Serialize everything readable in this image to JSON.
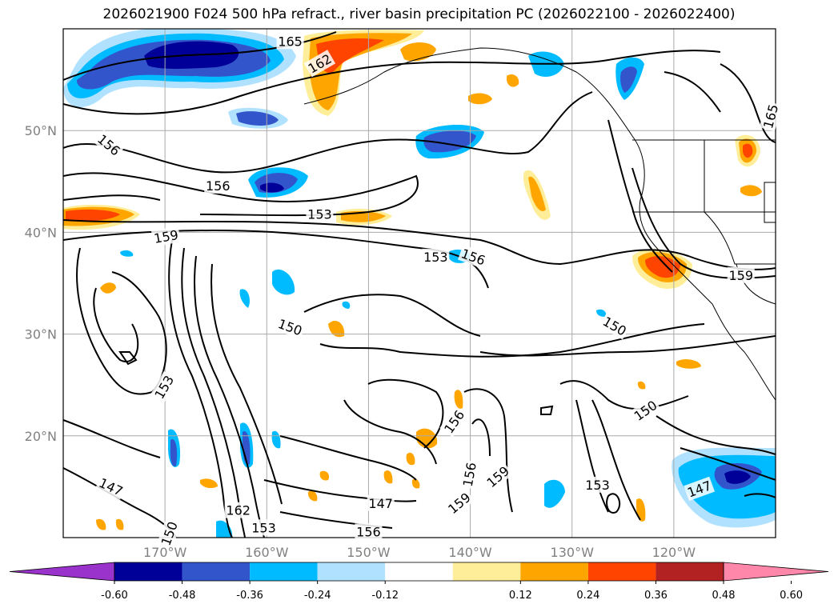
{
  "title": "2026021900 F024 500 hPa refract., river basin precipitation PC (2026022100 - 2026022400)",
  "map": {
    "projection": "cylindrical",
    "lon_range": [
      -180,
      -110
    ],
    "lat_range": [
      10,
      60
    ],
    "gridlines": true,
    "lat_ticks": [
      {
        "value": 20,
        "label": "20°N"
      },
      {
        "value": 30,
        "label": "30°N"
      },
      {
        "value": 40,
        "label": "40°N"
      },
      {
        "value": 50,
        "label": "50°N"
      }
    ],
    "lon_ticks": [
      {
        "value": -170,
        "label": "170°W"
      },
      {
        "value": -160,
        "label": "160°W"
      },
      {
        "value": -150,
        "label": "150°W"
      },
      {
        "value": -140,
        "label": "140°W"
      },
      {
        "value": -130,
        "label": "130°W"
      },
      {
        "value": -120,
        "label": "120°W"
      }
    ],
    "contour_labels": [
      {
        "text": "165",
        "lon": -157.7,
        "lat": 58.8,
        "angle": 0
      },
      {
        "text": "162",
        "lon": -154.8,
        "lat": 56.6,
        "angle": -30
      },
      {
        "text": "165",
        "lon": -110.5,
        "lat": 51.4,
        "angle": -75
      },
      {
        "text": "156",
        "lon": -175.5,
        "lat": 48.6,
        "angle": 40
      },
      {
        "text": "156",
        "lon": -164.8,
        "lat": 44.6,
        "angle": 0
      },
      {
        "text": "153",
        "lon": -154.8,
        "lat": 41.8,
        "angle": 0
      },
      {
        "text": "159",
        "lon": -169.9,
        "lat": 39.6,
        "angle": -10
      },
      {
        "text": "153",
        "lon": -143.4,
        "lat": 37.6,
        "angle": 0
      },
      {
        "text": "156",
        "lon": -139.7,
        "lat": 37.6,
        "angle": 20
      },
      {
        "text": "159",
        "lon": -113.4,
        "lat": 35.8,
        "angle": 0
      },
      {
        "text": "150",
        "lon": -157.7,
        "lat": 30.7,
        "angle": 20
      },
      {
        "text": "150",
        "lon": -125.8,
        "lat": 30.8,
        "angle": 30
      },
      {
        "text": "153",
        "lon": -170.1,
        "lat": 24.8,
        "angle": -60
      },
      {
        "text": "156",
        "lon": -141.6,
        "lat": 21.4,
        "angle": -55
      },
      {
        "text": "150",
        "lon": -122.8,
        "lat": 22.5,
        "angle": -35
      },
      {
        "text": "159",
        "lon": -137.3,
        "lat": 16.0,
        "angle": -40
      },
      {
        "text": "156",
        "lon": -140.1,
        "lat": 16.2,
        "angle": -80
      },
      {
        "text": "153",
        "lon": -127.5,
        "lat": 15.2,
        "angle": 0
      },
      {
        "text": "147",
        "lon": -117.5,
        "lat": 14.8,
        "angle": -20
      },
      {
        "text": "147",
        "lon": -175.3,
        "lat": 15.0,
        "angle": 25
      },
      {
        "text": "159",
        "lon": -141.1,
        "lat": 13.4,
        "angle": -40
      },
      {
        "text": "147",
        "lon": -148.8,
        "lat": 13.4,
        "angle": 0
      },
      {
        "text": "162",
        "lon": -162.8,
        "lat": 12.7,
        "angle": 0
      },
      {
        "text": "153",
        "lon": -160.3,
        "lat": 11.0,
        "angle": 0
      },
      {
        "text": "156",
        "lon": -150.0,
        "lat": 10.6,
        "angle": 0
      },
      {
        "text": "150",
        "lon": -169.6,
        "lat": 10.4,
        "angle": -70
      }
    ]
  },
  "colorbar": {
    "ticks": [
      "-0.60",
      "-0.48",
      "-0.36",
      "-0.24",
      "-0.12",
      "0.12",
      "0.24",
      "0.36",
      "0.48",
      "0.60"
    ],
    "colors": [
      "#9933cc",
      "#000099",
      "#3355cc",
      "#00bbff",
      "#b0e2ff",
      "#ffffff",
      "#ffee99",
      "#ffa500",
      "#ff4400",
      "#b22222",
      "#ff88aa"
    ]
  }
}
